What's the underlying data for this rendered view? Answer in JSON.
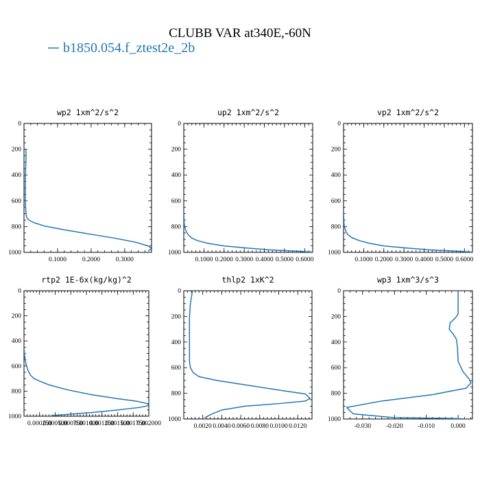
{
  "figure": {
    "title": "CLUBB VAR at340E,-60N",
    "legend_label": "b1850.054.f_ztest2e_2b",
    "legend_color": "#1f77b4"
  },
  "chart_data": [
    {
      "type": "line",
      "title": "wp2   1xm^2/s^2",
      "xlim": [
        0.0,
        0.38
      ],
      "ylim": [
        1000,
        0
      ],
      "x_ticks": [
        0.1,
        0.2,
        0.3
      ],
      "x_tick_labels": [
        "0.1000",
        "0.2000",
        "0.3000"
      ],
      "y_ticks": [
        0,
        200,
        400,
        600,
        800,
        1000
      ],
      "y_tick_labels": [
        "0",
        "200",
        "400",
        "600",
        "800",
        "1000"
      ],
      "series": [
        {
          "color": "#1f77b4",
          "x": [
            0.005,
            0.006,
            0.006,
            0.005,
            0.004,
            0.004,
            0.004,
            0.005,
            0.006,
            0.008,
            0.015,
            0.03,
            0.06,
            0.12,
            0.2,
            0.27,
            0.33,
            0.37,
            0.38,
            0.37
          ],
          "y": [
            200,
            230,
            280,
            340,
            420,
            500,
            600,
            660,
            700,
            730,
            750,
            770,
            795,
            825,
            860,
            890,
            920,
            950,
            970,
            990
          ]
        }
      ]
    },
    {
      "type": "line",
      "title": "up2   1xm^2/s^2",
      "xlim": [
        0.0,
        0.64
      ],
      "ylim": [
        1000,
        0
      ],
      "x_ticks": [
        0.1,
        0.2,
        0.3,
        0.4,
        0.5,
        0.6
      ],
      "x_tick_labels": [
        "0.1000",
        "0.2000",
        "0.3000",
        "0.4000",
        "0.5000",
        "0.6000"
      ],
      "y_ticks": [
        0,
        200,
        400,
        600,
        800,
        1000
      ],
      "y_tick_labels": [
        "0",
        "200",
        "400",
        "600",
        "800",
        "1000"
      ],
      "series": [
        {
          "color": "#1f77b4",
          "x": [
            0.0,
            0.001,
            0.002,
            0.004,
            0.01,
            0.02,
            0.04,
            0.07,
            0.12,
            0.2,
            0.3,
            0.42,
            0.55,
            0.64
          ],
          "y": [
            700,
            740,
            770,
            800,
            830,
            860,
            890,
            910,
            930,
            950,
            965,
            980,
            990,
            998
          ]
        }
      ]
    },
    {
      "type": "line",
      "title": "vp2   1xm^2/s^2",
      "xlim": [
        0.0,
        0.64
      ],
      "ylim": [
        1000,
        0
      ],
      "x_ticks": [
        0.1,
        0.2,
        0.3,
        0.4,
        0.5,
        0.6
      ],
      "x_tick_labels": [
        "0.1000",
        "0.2000",
        "0.3000",
        "0.4000",
        "0.5000",
        "0.6000"
      ],
      "y_ticks": [
        0,
        200,
        400,
        600,
        800,
        1000
      ],
      "y_tick_labels": [
        "0",
        "200",
        "400",
        "600",
        "800",
        "1000"
      ],
      "series": [
        {
          "color": "#1f77b4",
          "x": [
            0.0,
            0.001,
            0.002,
            0.004,
            0.01,
            0.02,
            0.04,
            0.08,
            0.13,
            0.2,
            0.3,
            0.42,
            0.55,
            0.64
          ],
          "y": [
            700,
            740,
            770,
            800,
            830,
            860,
            885,
            910,
            930,
            950,
            965,
            980,
            990,
            998
          ]
        }
      ]
    },
    {
      "type": "line",
      "title": "rtp2   1E-6x(kg/kg)^2",
      "xlim": [
        0.0,
        0.002
      ],
      "ylim": [
        1000,
        0
      ],
      "x_ticks": [
        0.00025,
        0.0005,
        0.00075,
        0.001,
        0.00125,
        0.0015,
        0.00175,
        0.002
      ],
      "x_tick_labels": [
        "0.000250",
        "0.000500",
        "0.000750",
        "0.001000",
        "0.001250",
        "0.001500",
        "0.001750",
        "0.002000"
      ],
      "y_ticks": [
        0,
        200,
        400,
        600,
        800,
        1000
      ],
      "y_tick_labels": [
        "0",
        "200",
        "400",
        "600",
        "800",
        "1000"
      ],
      "series": [
        {
          "color": "#1f77b4",
          "x": [
            0.0,
            1e-05,
            3e-05,
            6e-05,
            0.0001,
            0.00016,
            0.00025,
            0.0004,
            0.0007,
            0.0011,
            0.0015,
            0.0018,
            0.00198,
            0.002,
            0.00185,
            0.0015,
            0.0011,
            0.0007,
            0.00045
          ],
          "y": [
            450,
            520,
            580,
            630,
            670,
            700,
            720,
            750,
            790,
            830,
            860,
            880,
            900,
            915,
            930,
            950,
            970,
            985,
            995
          ]
        }
      ]
    },
    {
      "type": "line",
      "title": "thlp2   1xK^2",
      "xlim": [
        0.0,
        0.0135
      ],
      "ylim": [
        1000,
        0
      ],
      "x_ticks": [
        0.002,
        0.004,
        0.006,
        0.008,
        0.01,
        0.012
      ],
      "x_tick_labels": [
        "0.0020",
        "0.0040",
        "0.0060",
        "0.0080",
        "0.0100",
        "0.0120"
      ],
      "y_ticks": [
        0,
        200,
        400,
        600,
        800,
        1000
      ],
      "y_tick_labels": [
        "0",
        "200",
        "400",
        "600",
        "800",
        "1000"
      ],
      "series": [
        {
          "color": "#1f77b4",
          "x": [
            0.0009,
            0.0007,
            0.0006,
            0.0006,
            0.0006,
            0.0007,
            0.001,
            0.0016,
            0.0035,
            0.007,
            0.0105,
            0.0128,
            0.0133,
            0.0128,
            0.01,
            0.0065,
            0.004,
            0.003,
            0.0022
          ],
          "y": [
            5,
            100,
            200,
            400,
            550,
            600,
            640,
            670,
            700,
            740,
            780,
            805,
            840,
            860,
            880,
            900,
            930,
            960,
            990
          ]
        }
      ]
    },
    {
      "type": "line",
      "title": "wp3   1xm^3/s^3",
      "xlim": [
        -0.036,
        0.0045
      ],
      "ylim": [
        1000,
        0
      ],
      "x_ticks": [
        -0.03,
        -0.02,
        -0.01,
        0.0
      ],
      "x_tick_labels": [
        "-0.030",
        "-0.020",
        "-0.010",
        "0.000"
      ],
      "y_ticks": [
        0,
        200,
        400,
        600,
        800,
        1000
      ],
      "y_tick_labels": [
        "0",
        "200",
        "400",
        "600",
        "800",
        "1000"
      ],
      "series": [
        {
          "color": "#1f77b4",
          "x": [
            0.0,
            0.0,
            0.0,
            -0.0008,
            -0.0025,
            -0.0028,
            -0.0015,
            -0.0005,
            -0.0002,
            0.0,
            0.0015,
            0.0035,
            0.004,
            0.0025,
            -0.008,
            -0.024,
            -0.035,
            -0.033,
            -0.02,
            -0.002,
            0.0025
          ],
          "y": [
            0,
            100,
            180,
            210,
            250,
            300,
            340,
            380,
            450,
            550,
            630,
            690,
            720,
            760,
            810,
            860,
            910,
            960,
            990,
            995,
            1000
          ]
        }
      ]
    }
  ]
}
